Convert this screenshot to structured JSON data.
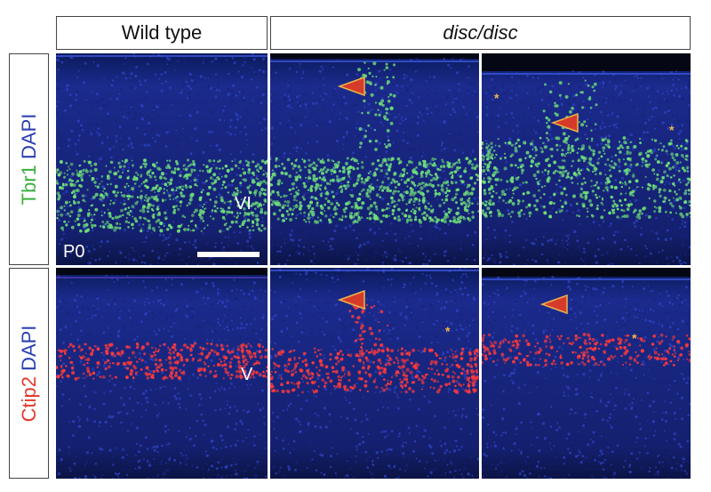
{
  "headers": {
    "wild_type": "Wild type",
    "mutant": "disc/disc"
  },
  "rows": [
    {
      "marker": "Tbr1",
      "marker_color": "#3cae3c",
      "counterstain": "DAPI",
      "counterstain_color": "#2a3fb0"
    },
    {
      "marker": "Ctip2",
      "marker_color": "#e4362b",
      "counterstain": "DAPI",
      "counterstain_color": "#2a3fb0"
    }
  ],
  "overlays": {
    "layer_vi": "VI",
    "age": "P0",
    "layer_v": "V"
  },
  "colors": {
    "tissue_blue": "#1b2a8c",
    "dark_bg": "#050814",
    "tbr1_dots": "#6fe07a",
    "ctip2_dots": "#ff3a3a",
    "arrow_fill": "#d63a2a",
    "arrow_stroke": "#e8b34a",
    "asterisk": "#f2b94a"
  },
  "annotations": {
    "asterisk": "*"
  }
}
